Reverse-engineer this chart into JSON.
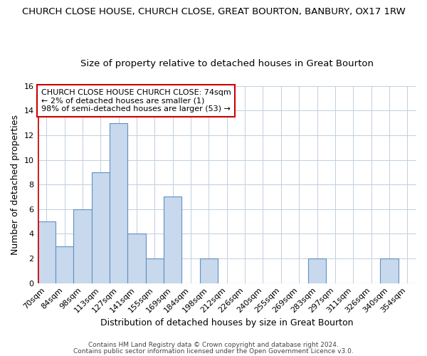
{
  "title": "CHURCH CLOSE HOUSE, CHURCH CLOSE, GREAT BOURTON, BANBURY, OX17 1RW",
  "subtitle": "Size of property relative to detached houses in Great Bourton",
  "xlabel": "Distribution of detached houses by size in Great Bourton",
  "ylabel": "Number of detached properties",
  "bar_labels": [
    "70sqm",
    "84sqm",
    "98sqm",
    "113sqm",
    "127sqm",
    "141sqm",
    "155sqm",
    "169sqm",
    "184sqm",
    "198sqm",
    "212sqm",
    "226sqm",
    "240sqm",
    "255sqm",
    "269sqm",
    "283sqm",
    "297sqm",
    "311sqm",
    "326sqm",
    "340sqm",
    "354sqm"
  ],
  "bar_values": [
    5,
    3,
    6,
    9,
    13,
    4,
    2,
    7,
    0,
    2,
    0,
    0,
    0,
    0,
    0,
    2,
    0,
    0,
    0,
    2,
    0
  ],
  "bar_color": "#c8d8ed",
  "bar_edge_color": "#6090c0",
  "bar_edge_width": 0.8,
  "annotation_text": "CHURCH CLOSE HOUSE CHURCH CLOSE: 74sqm\n← 2% of detached houses are smaller (1)\n98% of semi-detached houses are larger (53) →",
  "annotation_box_color": "#ffffff",
  "annotation_box_edge_color": "#cc0000",
  "red_line_color": "#cc0000",
  "grid_color": "#c0cfe0",
  "plot_bg_color": "#ffffff",
  "fig_bg_color": "#ffffff",
  "ylim": [
    0,
    16
  ],
  "yticks": [
    0,
    2,
    4,
    6,
    8,
    10,
    12,
    14,
    16
  ],
  "title_fontsize": 9.5,
  "subtitle_fontsize": 9.5,
  "xlabel_fontsize": 9,
  "ylabel_fontsize": 9,
  "tick_fontsize": 8,
  "annotation_fontsize": 8,
  "footer_line1": "Contains HM Land Registry data © Crown copyright and database right 2024.",
  "footer_line2": "Contains public sector information licensed under the Open Government Licence v3.0."
}
